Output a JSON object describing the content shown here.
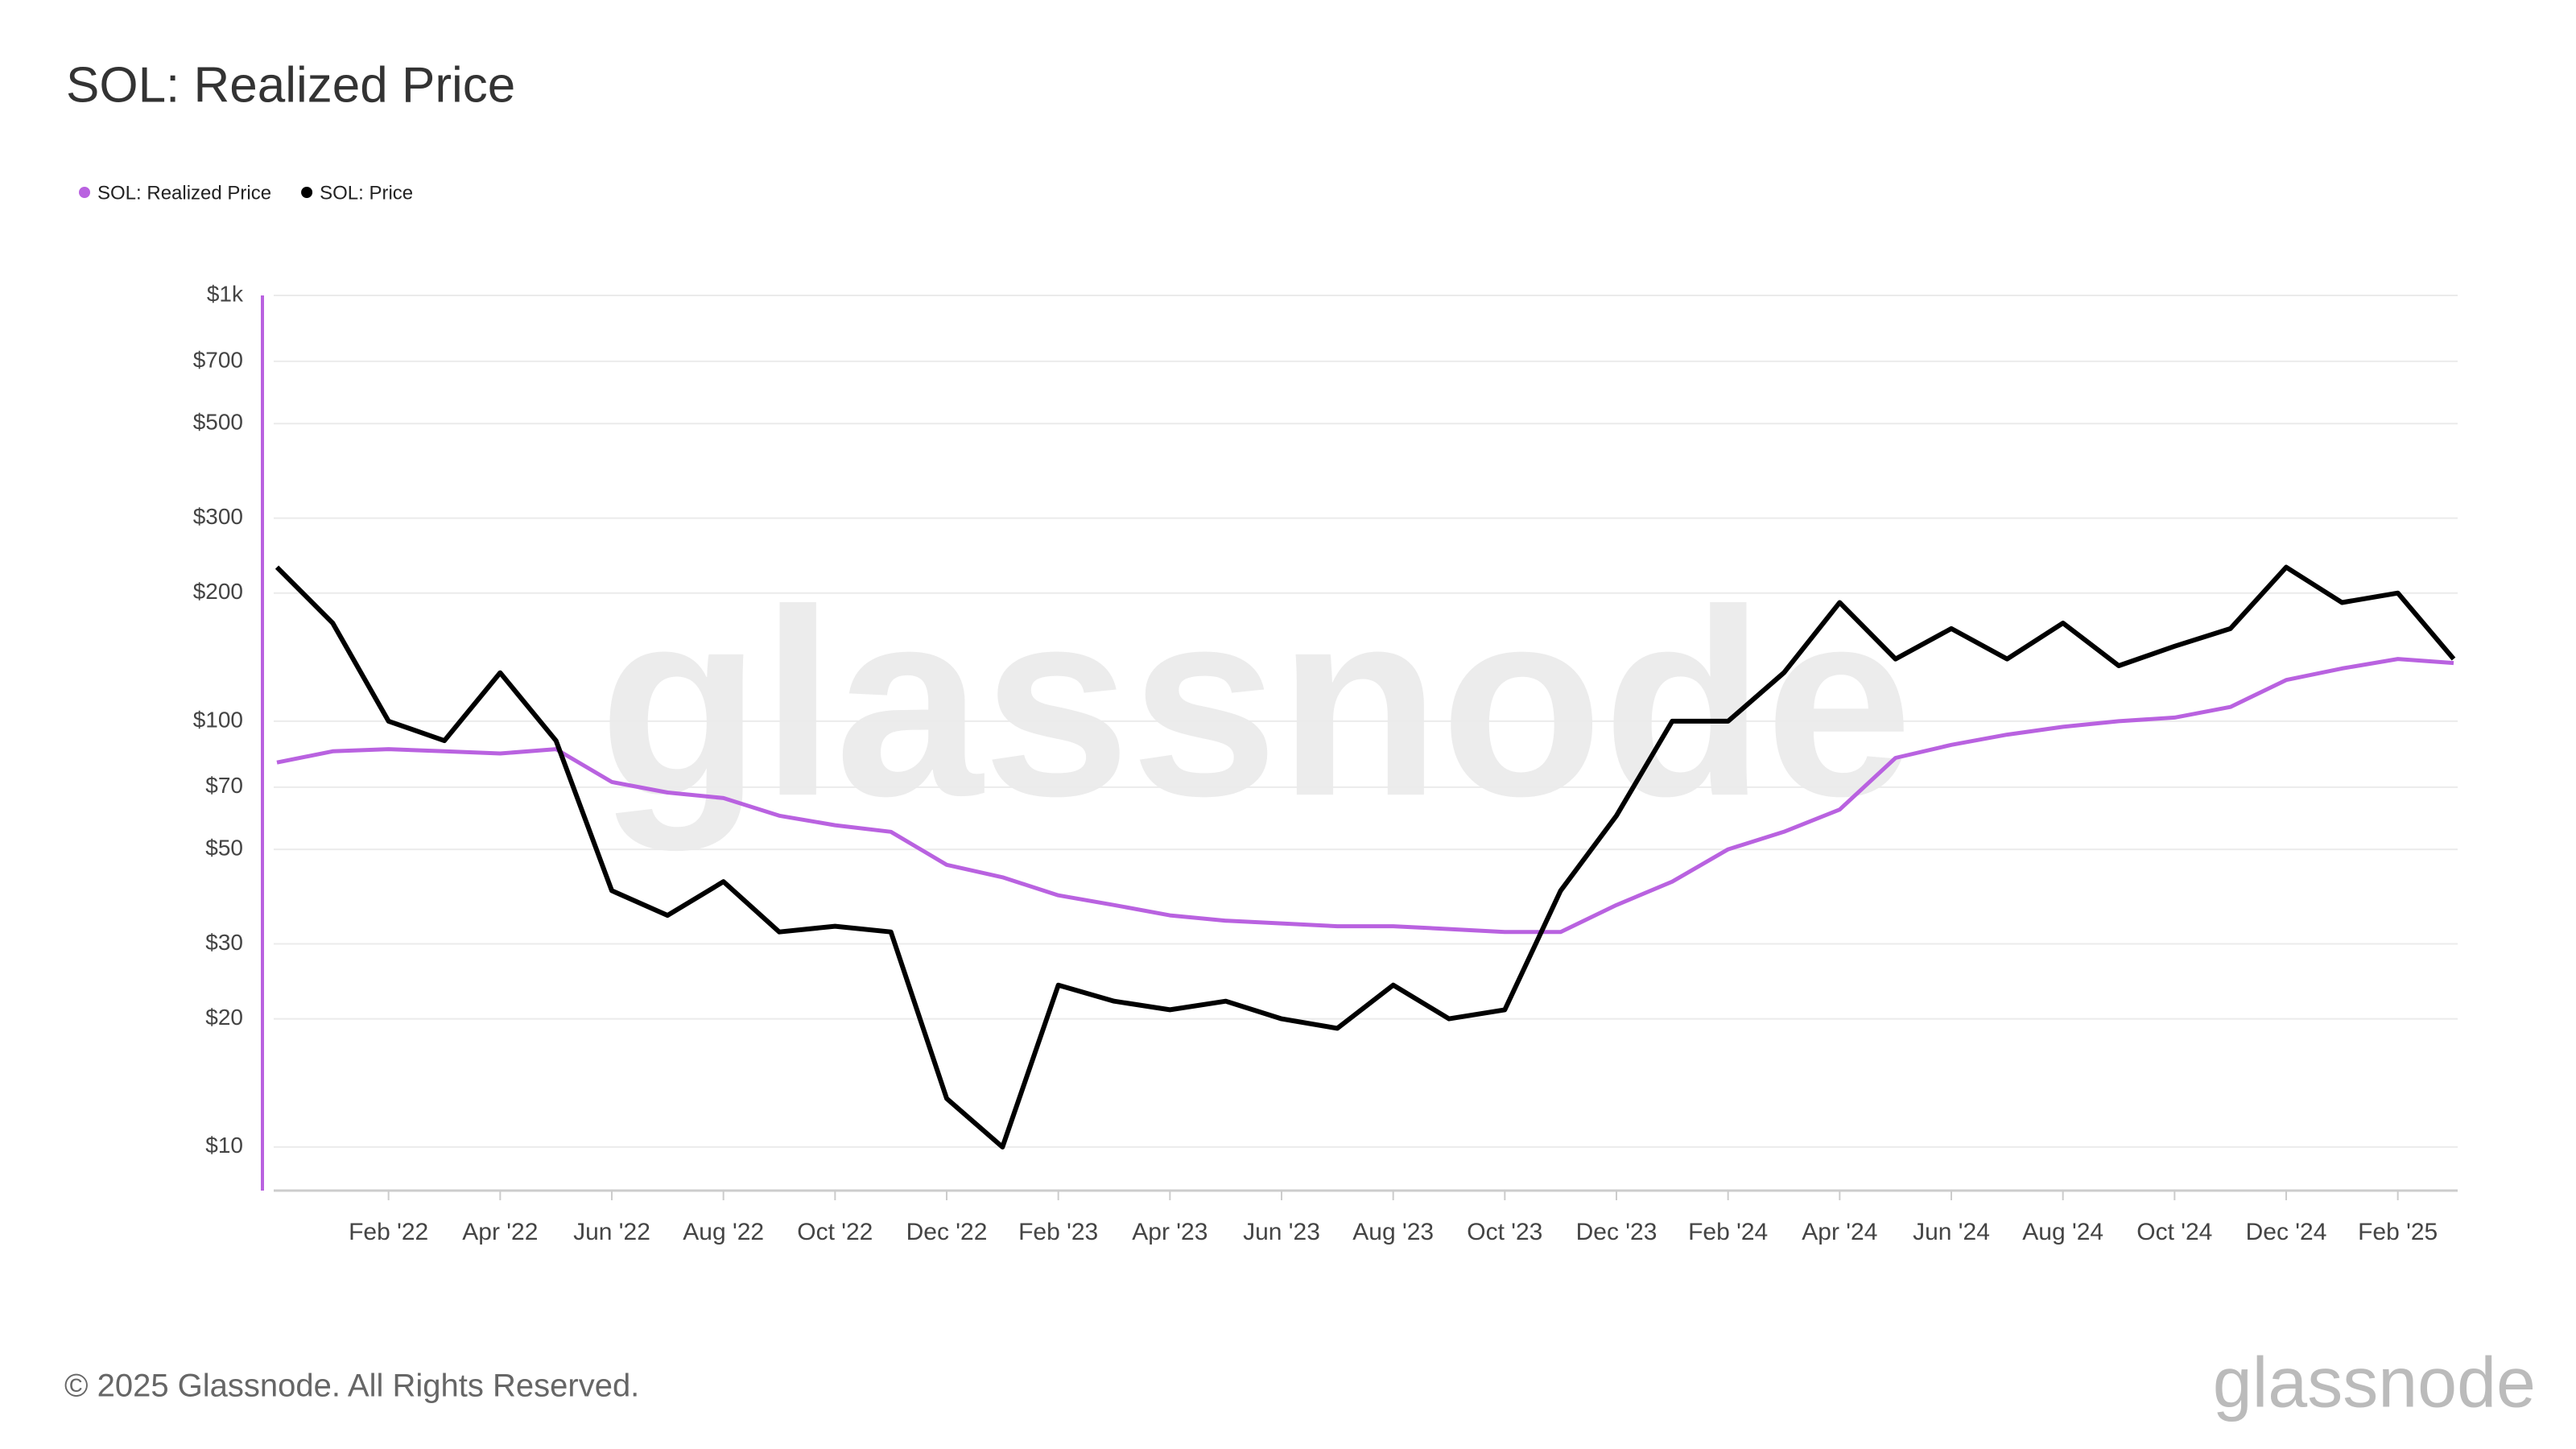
{
  "chart_data": {
    "type": "line",
    "title": "SOL: Realized Price",
    "categories": [
      null,
      null,
      "Feb '22",
      null,
      "Apr '22",
      null,
      "Jun '22",
      null,
      "Aug '22",
      null,
      "Oct '22",
      null,
      "Dec '22",
      null,
      "Feb '23",
      null,
      "Apr '23",
      null,
      "Jun '23",
      null,
      "Aug '23",
      null,
      "Oct '23",
      null,
      "Dec '23",
      null,
      "Feb '24",
      null,
      "Apr '24",
      null,
      "Jun '24",
      null,
      "Aug '24",
      null,
      "Oct '24",
      null,
      "Dec '24",
      null,
      "Feb '25",
      null
    ],
    "series": [
      {
        "name": "SOL: Realized Price",
        "color": "#b962e0",
        "values": [
          80,
          85,
          86,
          85,
          84,
          86,
          72,
          68,
          66,
          60,
          57,
          55,
          46,
          43,
          39,
          37,
          35,
          34,
          33.5,
          33,
          33,
          32.5,
          32,
          32,
          37,
          42,
          50,
          55,
          62,
          82,
          88,
          93,
          97,
          100,
          102,
          108,
          125,
          133,
          140,
          137
        ]
      },
      {
        "name": "SOL: Price",
        "color": "#000000",
        "values": [
          230,
          170,
          100,
          90,
          130,
          90,
          40,
          35,
          42,
          32,
          33,
          32,
          13,
          10,
          24,
          22,
          21,
          22,
          20,
          19,
          24,
          20,
          21,
          40,
          60,
          100,
          100,
          130,
          190,
          140,
          165,
          140,
          170,
          135,
          150,
          165,
          230,
          190,
          200,
          140
        ]
      }
    ],
    "log": true,
    "grid": true,
    "legend": "top-left",
    "ylim": [
      7.9,
      1000
    ],
    "yticks": [
      {
        "value": 10,
        "label": "$10"
      },
      {
        "value": 20,
        "label": "$20"
      },
      {
        "value": 30,
        "label": "$30"
      },
      {
        "value": 50,
        "label": "$50"
      },
      {
        "value": 70,
        "label": "$70"
      },
      {
        "value": 100,
        "label": "$100"
      },
      {
        "value": 200,
        "label": "$200"
      },
      {
        "value": 300,
        "label": "$300"
      },
      {
        "value": 500,
        "label": "$500"
      },
      {
        "value": 700,
        "label": "$700"
      },
      {
        "value": 1000,
        "label": "$1k"
      }
    ]
  },
  "footer": {
    "copyright": "© 2025 Glassnode. All Rights Reserved.",
    "brand": "glassnode"
  },
  "watermark": "glassnode"
}
